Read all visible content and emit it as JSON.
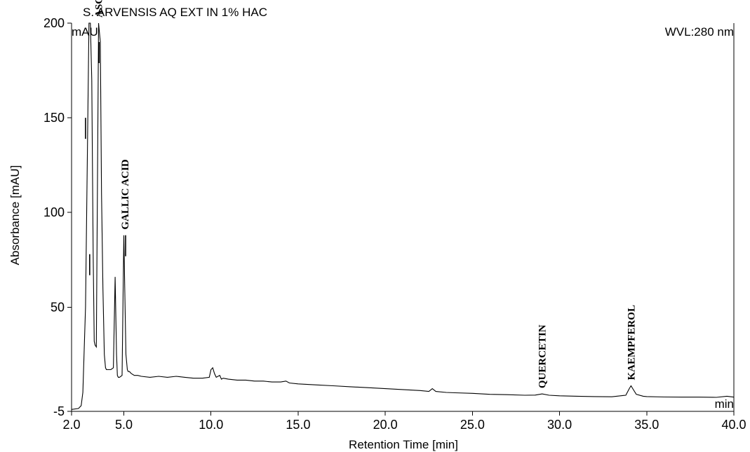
{
  "chart_data": {
    "type": "line",
    "title": "S. ARVENSIS AQ EXT IN 1% HAC",
    "wavelength_label": "WVL:280 nm",
    "xlabel": "Retention Time [min]",
    "ylabel": "Absorbance [mAU]",
    "x_unit": "min",
    "y_unit": "mAU",
    "xlim": [
      2.0,
      40.0
    ],
    "ylim": [
      -5,
      200
    ],
    "x_ticks": [
      "2.0",
      "5.0",
      "10.0",
      "15.0",
      "20.0",
      "25.0",
      "30.0",
      "35.0",
      "40.0"
    ],
    "y_ticks": [
      "-5",
      "50",
      "100",
      "150",
      "200"
    ],
    "grid": false,
    "series": [
      {
        "x": [
          2.0,
          2.4,
          2.55,
          2.65,
          2.8,
          3.0,
          3.08,
          3.16,
          3.24,
          3.3,
          3.35,
          3.42,
          3.55,
          3.65,
          3.72,
          3.8,
          3.88,
          3.95,
          4.0,
          4.1,
          4.25,
          4.4,
          4.5,
          4.58,
          4.63,
          4.68,
          4.75,
          4.9,
          5.0,
          5.05,
          5.12,
          5.2,
          5.25,
          5.32,
          5.42,
          5.6,
          5.8,
          6.0,
          6.5,
          7.0,
          7.5,
          8.0,
          8.5,
          9.0,
          9.5,
          9.9,
          10.0,
          10.1,
          10.2,
          10.3,
          10.5,
          10.6,
          10.7,
          11.0,
          11.5,
          12.0,
          12.5,
          13.0,
          13.5,
          14.0,
          14.3,
          14.5,
          15.0,
          16.0,
          17.0,
          18.0,
          19.0,
          20.0,
          21.0,
          22.0,
          22.5,
          22.7,
          22.9,
          23.5,
          24.0,
          25.0,
          26.0,
          27.0,
          28.0,
          28.6,
          29.0,
          29.4,
          30.0,
          31.0,
          32.0,
          33.0,
          33.8,
          34.0,
          34.1,
          34.2,
          34.4,
          34.8,
          35.0,
          36.0,
          37.0,
          38.0,
          39.0,
          39.6,
          40.0
        ],
        "values": [
          -4,
          -3.5,
          -2,
          5,
          50,
          200,
          200,
          170,
          78,
          32,
          30,
          29,
          200,
          190,
          110,
          60,
          25,
          18,
          17,
          17,
          17,
          18,
          66,
          25,
          14,
          13,
          13,
          14,
          88,
          60,
          25,
          17,
          16,
          16,
          15,
          14,
          14,
          13.5,
          13,
          13.5,
          13,
          13.5,
          13,
          12.5,
          12.5,
          13,
          17,
          18,
          15,
          13,
          14,
          12,
          12.5,
          12,
          11.5,
          11.5,
          11,
          11,
          10.5,
          10.5,
          11,
          10,
          9.5,
          9,
          8.5,
          8,
          7.5,
          7,
          6.5,
          6,
          5.5,
          7,
          5.5,
          5,
          4.8,
          4.5,
          4,
          3.8,
          3.5,
          3.6,
          4.2,
          3.5,
          3.2,
          3.0,
          2.8,
          2.7,
          3.5,
          7,
          8.5,
          7,
          4,
          3.0,
          2.8,
          2.6,
          2.5,
          2.5,
          2.4,
          3,
          2.5
        ]
      }
    ],
    "peak_labels": [
      {
        "text": "ASCORBIC ACID",
        "x": 3.55,
        "y": 200
      },
      {
        "text": "GALLIC ACID",
        "x": 5.05,
        "y": 88
      },
      {
        "text": "QUERCETIN",
        "x": 29.0,
        "y": 4.2
      },
      {
        "text": "KAEMPFEROL",
        "x": 34.1,
        "y": 8.5
      }
    ],
    "peak_markers": [
      {
        "x": 2.8,
        "y": 150
      },
      {
        "x": 3.04,
        "y": 78
      },
      {
        "x": 3.58,
        "y": 190
      },
      {
        "x": 5.1,
        "y": 88
      }
    ]
  }
}
